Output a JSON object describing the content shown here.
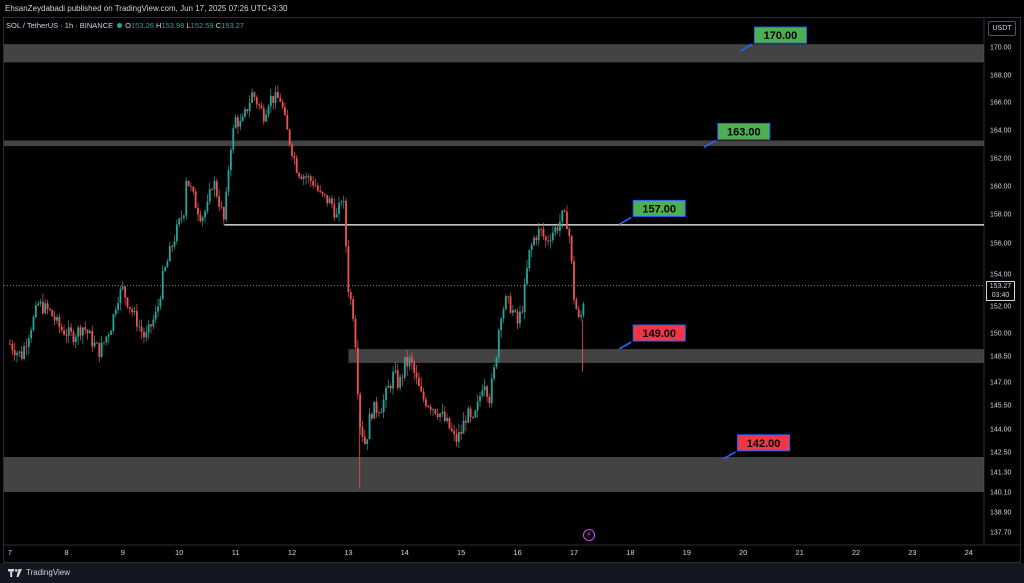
{
  "header": {
    "published_text": "EhsanZeydabadi published on TradingView.com, Jun 17, 2025 07:26 UTC+3:30"
  },
  "legend": {
    "symbol": "SOL / TetherUS · 1h · BINANCE",
    "o_label": "O",
    "o_value": "153.26",
    "h_label": "H",
    "h_value": "153.98",
    "l_label": "L",
    "l_value": "152.59",
    "c_label": "C",
    "c_value": "153.27"
  },
  "currency": "USDT",
  "current_price": {
    "price": "153.27",
    "countdown": "03:40"
  },
  "footer": {
    "brand": "TradingView"
  },
  "colors": {
    "up": "#26a69a",
    "down": "#ef5350",
    "green_label": "#4caf50",
    "red_label": "#f23645",
    "zone": "#5a5a5a"
  },
  "chart_data": {
    "type": "candlestick",
    "x_ticks": [
      "7",
      "8",
      "9",
      "10",
      "11",
      "12",
      "13",
      "14",
      "15",
      "16",
      "17",
      "18",
      "19",
      "20",
      "21",
      "22",
      "23",
      "24"
    ],
    "y_ticks": [
      "170.00",
      "168.00",
      "166.00",
      "164.00",
      "162.00",
      "160.00",
      "158.00",
      "156.00",
      "154.00",
      "152.00",
      "150.00",
      "148.50",
      "147.00",
      "145.50",
      "144.00",
      "142.50",
      "141.30",
      "140.10",
      "138.90",
      "137.70"
    ],
    "ylim": [
      137.0,
      171.3
    ],
    "xlim_days": [
      7,
      24.2
    ],
    "close_path": [
      [
        7.0,
        149.3
      ],
      [
        7.2,
        148.5
      ],
      [
        7.4,
        150.8
      ],
      [
        7.5,
        152.1
      ],
      [
        7.7,
        151.6
      ],
      [
        7.9,
        150.3
      ],
      [
        8.1,
        149.8
      ],
      [
        8.3,
        150.5
      ],
      [
        8.5,
        149.2
      ],
      [
        8.6,
        148.8
      ],
      [
        8.8,
        150.6
      ],
      [
        8.9,
        152.6
      ],
      [
        9.0,
        153.0
      ],
      [
        9.1,
        152.2
      ],
      [
        9.3,
        150.4
      ],
      [
        9.4,
        149.6
      ],
      [
        9.6,
        151.5
      ],
      [
        9.7,
        153.6
      ],
      [
        9.8,
        154.9
      ],
      [
        9.9,
        156.2
      ],
      [
        10.1,
        158.5
      ],
      [
        10.1,
        160.9
      ],
      [
        10.2,
        159.8
      ],
      [
        10.3,
        158.6
      ],
      [
        10.4,
        157.8
      ],
      [
        10.5,
        158.5
      ],
      [
        10.6,
        160.5
      ],
      [
        10.7,
        159.0
      ],
      [
        10.8,
        157.4
      ],
      [
        10.9,
        162.6
      ],
      [
        11.0,
        164.8
      ],
      [
        11.1,
        164.3
      ],
      [
        11.2,
        165.5
      ],
      [
        11.3,
        166.7
      ],
      [
        11.4,
        165.8
      ],
      [
        11.5,
        165.1
      ],
      [
        11.6,
        166.3
      ],
      [
        11.8,
        166.2
      ],
      [
        11.9,
        164.1
      ],
      [
        12.0,
        162.6
      ],
      [
        12.1,
        161.1
      ],
      [
        12.2,
        160.8
      ],
      [
        12.4,
        160.2
      ],
      [
        12.5,
        159.3
      ],
      [
        12.7,
        158.8
      ],
      [
        12.8,
        157.7
      ],
      [
        12.9,
        159.6
      ],
      [
        13.0,
        153.2
      ],
      [
        13.1,
        151.1
      ],
      [
        13.2,
        144.5
      ],
      [
        13.3,
        143.0
      ],
      [
        13.4,
        145.1
      ],
      [
        13.6,
        145.5
      ],
      [
        13.7,
        146.5
      ],
      [
        13.8,
        147.4
      ],
      [
        13.9,
        146.8
      ],
      [
        14.0,
        148.0
      ],
      [
        14.1,
        148.2
      ],
      [
        14.2,
        147.1
      ],
      [
        14.3,
        146.0
      ],
      [
        14.5,
        145.4
      ],
      [
        14.6,
        145.1
      ],
      [
        14.8,
        144.0
      ],
      [
        14.9,
        143.2
      ],
      [
        15.0,
        143.8
      ],
      [
        15.1,
        145.0
      ],
      [
        15.2,
        144.2
      ],
      [
        15.3,
        145.5
      ],
      [
        15.4,
        147.3
      ],
      [
        15.5,
        146.0
      ],
      [
        15.6,
        147.9
      ],
      [
        15.7,
        151.5
      ],
      [
        15.8,
        152.3
      ],
      [
        15.9,
        151.8
      ],
      [
        16.0,
        150.7
      ],
      [
        16.1,
        152.2
      ],
      [
        16.2,
        155.2
      ],
      [
        16.3,
        156.4
      ],
      [
        16.4,
        156.9
      ],
      [
        16.5,
        156.1
      ],
      [
        16.6,
        156.7
      ],
      [
        16.7,
        157.1
      ],
      [
        16.8,
        157.9
      ],
      [
        16.9,
        157.3
      ],
      [
        17.0,
        152.6
      ],
      [
        17.1,
        150.6
      ],
      [
        17.2,
        153.3
      ]
    ],
    "horizontal_lines": [
      {
        "type": "zone",
        "price_top": 170.2,
        "price_bottom": 168.9
      },
      {
        "type": "zone",
        "price_top": 163.25,
        "price_bottom": 162.85
      },
      {
        "type": "line",
        "price": 157.25,
        "from_day": 10.8
      },
      {
        "type": "zone",
        "price_top": 148.95,
        "price_bottom": 148.1,
        "from_day": 13.0
      },
      {
        "type": "zone",
        "price_top": 142.2,
        "price_bottom": 140.1
      },
      {
        "type": "dotted",
        "price": 153.27
      }
    ],
    "annotations": [
      {
        "text": "170.00",
        "color": "green",
        "price": 170.85,
        "day": 20.2
      },
      {
        "text": "163.00",
        "color": "green",
        "price": 163.9,
        "day": 19.55
      },
      {
        "text": "157.00",
        "color": "green",
        "price": 158.4,
        "day": 18.05
      },
      {
        "text": "149.00",
        "color": "red",
        "price": 150.0,
        "day": 18.05
      },
      {
        "text": "142.00",
        "color": "red",
        "price": 143.1,
        "day": 19.9
      }
    ]
  }
}
